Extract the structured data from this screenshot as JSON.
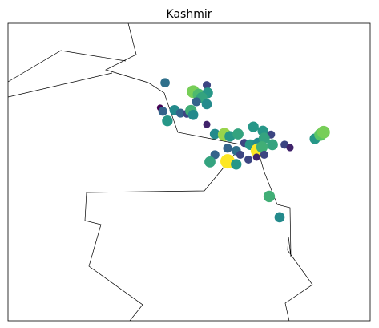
{
  "chart_data": {
    "type": "scatter",
    "title": "Kashmir",
    "xlim": [
      73,
      81
    ],
    "ylim": [
      32,
      37
    ],
    "colormap": [
      "#440154",
      "#3b528b",
      "#21918c",
      "#5ec962",
      "#fde725"
    ],
    "x": [
      76.47,
      77.09,
      77.21,
      77.39,
      77.41,
      77.28,
      77.16,
      77.39,
      76.36,
      76.42,
      76.68,
      76.81,
      76.95,
      77.04,
      77.09,
      76.52,
      77.39,
      77.57,
      77.78,
      77.9,
      78.08,
      78.42,
      78.63,
      78.81,
      78.22,
      78.35,
      78.52,
      78.66,
      78.84,
      78.52,
      78.61,
      77.85,
      78.04,
      78.13,
      78.31,
      78.49,
      78.66,
      77.85,
      78.04,
      77.57,
      77.46,
      79.11,
      79.23,
      79.78,
      79.9,
      79.97,
      78.77,
      79.0
    ],
    "y": [
      36.0,
      35.85,
      35.8,
      35.96,
      35.83,
      35.75,
      35.68,
      35.64,
      35.58,
      35.52,
      35.54,
      35.49,
      35.48,
      35.53,
      35.46,
      35.36,
      35.3,
      35.14,
      35.13,
      35.1,
      35.14,
      35.26,
      35.19,
      35.13,
      34.99,
      34.96,
      34.99,
      35.07,
      34.96,
      34.86,
      34.92,
      34.9,
      34.86,
      34.79,
      34.71,
      34.75,
      34.79,
      34.68,
      34.63,
      34.79,
      34.67,
      34.96,
      34.91,
      35.06,
      35.13,
      35.17,
      34.09,
      33.74
    ],
    "values": [
      0.35,
      0.75,
      0.65,
      0.2,
      0.5,
      0.55,
      0.3,
      0.45,
      0.0,
      0.3,
      0.45,
      0.3,
      0.2,
      0.6,
      0.45,
      0.5,
      0.1,
      0.45,
      0.8,
      0.5,
      0.55,
      0.5,
      0.5,
      0.2,
      0.2,
      0.5,
      0.45,
      0.55,
      0.55,
      0.95,
      0.6,
      0.3,
      0.35,
      0.2,
      0.2,
      0.1,
      0.2,
      0.95,
      0.5,
      0.3,
      0.55,
      0.2,
      0.1,
      0.5,
      0.7,
      0.75,
      0.6,
      0.45
    ]
  }
}
